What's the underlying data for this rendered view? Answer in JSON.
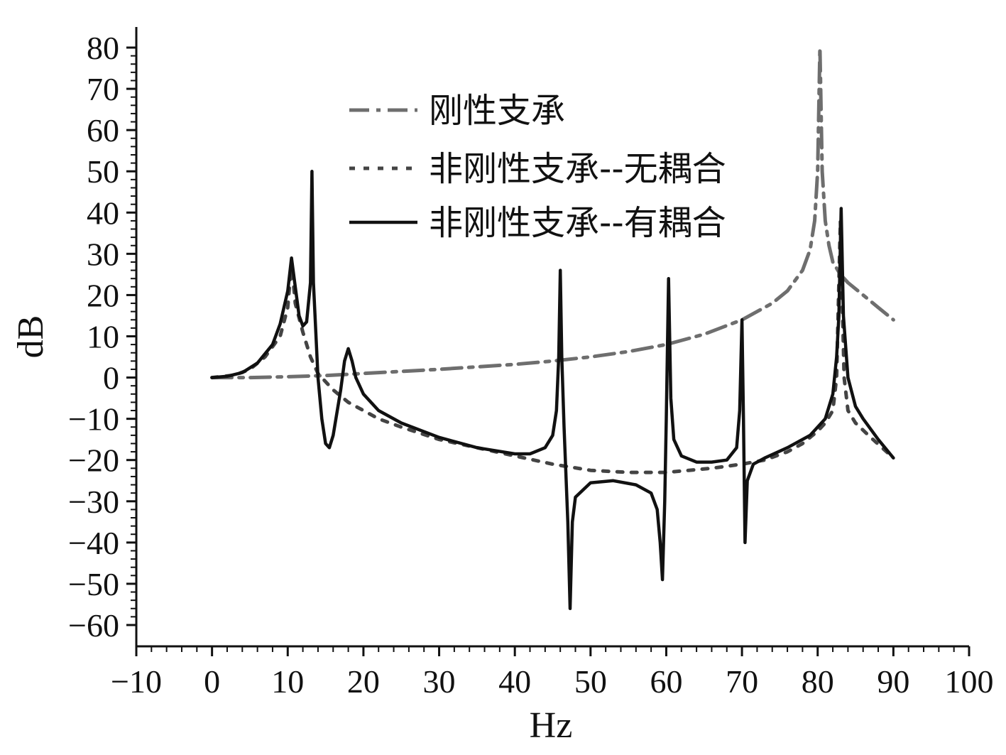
{
  "chart_data": {
    "type": "line",
    "title": "",
    "xlabel": "Hz",
    "ylabel": "dB",
    "xlim": [
      -10,
      100
    ],
    "ylim": [
      -65,
      85
    ],
    "x_ticks": [
      -10,
      0,
      10,
      20,
      30,
      40,
      50,
      60,
      70,
      80,
      90,
      100
    ],
    "y_ticks": [
      -60,
      -50,
      -40,
      -30,
      -20,
      -10,
      0,
      10,
      20,
      30,
      40,
      50,
      60,
      70,
      80
    ],
    "x_tick_labels": [
      "−10",
      "0",
      "10",
      "20",
      "30",
      "40",
      "50",
      "60",
      "70",
      "80",
      "90",
      "100"
    ],
    "y_tick_labels": [
      "−60",
      "−50",
      "−40",
      "−30",
      "−20",
      "−10",
      "0",
      "10",
      "20",
      "30",
      "40",
      "50",
      "60",
      "70",
      "80"
    ],
    "grid": false,
    "legend_position": "top-center",
    "series": [
      {
        "name": "刚性支承",
        "style": "dash-dot",
        "color": "#6e6e6e",
        "points": [
          [
            0,
            0
          ],
          [
            5,
            0
          ],
          [
            10,
            0.2
          ],
          [
            15,
            0.5
          ],
          [
            20,
            1
          ],
          [
            25,
            1.5
          ],
          [
            30,
            2
          ],
          [
            35,
            2.6
          ],
          [
            40,
            3.2
          ],
          [
            45,
            4
          ],
          [
            50,
            5
          ],
          [
            55,
            6.3
          ],
          [
            60,
            8
          ],
          [
            65,
            10.5
          ],
          [
            70,
            14
          ],
          [
            74,
            18
          ],
          [
            76,
            21
          ],
          [
            78,
            26
          ],
          [
            79,
            31
          ],
          [
            79.6,
            38
          ],
          [
            80,
            50
          ],
          [
            80.3,
            80
          ],
          [
            80.6,
            50
          ],
          [
            81,
            38
          ],
          [
            81.5,
            32
          ],
          [
            82,
            28
          ],
          [
            83,
            25
          ],
          [
            84,
            23
          ],
          [
            86,
            20
          ],
          [
            88,
            17
          ],
          [
            90,
            14
          ]
        ]
      },
      {
        "name": "非刚性支承--无耦合",
        "style": "dotted",
        "color": "#444444",
        "points": [
          [
            0,
            0
          ],
          [
            3,
            0.6
          ],
          [
            5,
            2
          ],
          [
            7,
            5
          ],
          [
            9,
            10
          ],
          [
            10,
            17
          ],
          [
            10.5,
            28
          ],
          [
            11,
            18
          ],
          [
            12,
            11
          ],
          [
            13,
            5
          ],
          [
            14,
            1
          ],
          [
            15,
            -1
          ],
          [
            16,
            -3
          ],
          [
            18,
            -6
          ],
          [
            20,
            -8
          ],
          [
            22,
            -10
          ],
          [
            25,
            -12
          ],
          [
            30,
            -15
          ],
          [
            35,
            -17
          ],
          [
            40,
            -19
          ],
          [
            45,
            -21
          ],
          [
            50,
            -22.5
          ],
          [
            55,
            -23
          ],
          [
            60,
            -23
          ],
          [
            63,
            -22.5
          ],
          [
            66,
            -22
          ],
          [
            70,
            -21
          ],
          [
            73,
            -20
          ],
          [
            76,
            -18
          ],
          [
            78,
            -16
          ],
          [
            80,
            -13
          ],
          [
            81,
            -11
          ],
          [
            82,
            -8
          ],
          [
            82.5,
            0
          ],
          [
            83,
            38
          ],
          [
            83.5,
            0
          ],
          [
            84,
            -8
          ],
          [
            85,
            -11
          ],
          [
            87,
            -14.5
          ],
          [
            90,
            -19.5
          ]
        ]
      },
      {
        "name": "非刚性支承--有耦合",
        "style": "solid",
        "color": "#111111",
        "points": [
          [
            0,
            0
          ],
          [
            2,
            0.3
          ],
          [
            4,
            1.2
          ],
          [
            6,
            3.5
          ],
          [
            8,
            8
          ],
          [
            9,
            13
          ],
          [
            10,
            21
          ],
          [
            10.5,
            29
          ],
          [
            11,
            22
          ],
          [
            11.5,
            15
          ],
          [
            12,
            12.5
          ],
          [
            12.5,
            13.5
          ],
          [
            13,
            23
          ],
          [
            13.2,
            50
          ],
          [
            13.4,
            23
          ],
          [
            14,
            0
          ],
          [
            14.5,
            -10
          ],
          [
            15,
            -16
          ],
          [
            15.5,
            -17
          ],
          [
            16,
            -14
          ],
          [
            17,
            -3
          ],
          [
            17.5,
            4
          ],
          [
            18,
            7
          ],
          [
            18.5,
            4
          ],
          [
            19,
            0
          ],
          [
            20,
            -4
          ],
          [
            22,
            -8
          ],
          [
            25,
            -11
          ],
          [
            30,
            -14.5
          ],
          [
            35,
            -17
          ],
          [
            40,
            -18.5
          ],
          [
            42,
            -18.5
          ],
          [
            44,
            -17
          ],
          [
            45,
            -14
          ],
          [
            45.5,
            -8
          ],
          [
            45.8,
            5
          ],
          [
            46,
            26
          ],
          [
            46.2,
            5
          ],
          [
            46.5,
            -12
          ],
          [
            47,
            -35
          ],
          [
            47.3,
            -56
          ],
          [
            47.6,
            -35
          ],
          [
            48,
            -29
          ],
          [
            50,
            -25.5
          ],
          [
            53,
            -25
          ],
          [
            56,
            -26
          ],
          [
            58,
            -28
          ],
          [
            58.8,
            -32
          ],
          [
            59.2,
            -40
          ],
          [
            59.5,
            -49
          ],
          [
            59.8,
            -30
          ],
          [
            60,
            -10
          ],
          [
            60.3,
            24
          ],
          [
            60.6,
            -5
          ],
          [
            61,
            -15
          ],
          [
            62,
            -19
          ],
          [
            64,
            -20.5
          ],
          [
            66,
            -20.5
          ],
          [
            68,
            -20
          ],
          [
            69.3,
            -17
          ],
          [
            69.7,
            -8
          ],
          [
            70,
            14
          ],
          [
            70.2,
            -10
          ],
          [
            70.4,
            -40
          ],
          [
            70.7,
            -25
          ],
          [
            71.5,
            -21
          ],
          [
            73,
            -19.5
          ],
          [
            76,
            -17
          ],
          [
            79,
            -14
          ],
          [
            81,
            -10
          ],
          [
            82,
            -4
          ],
          [
            82.5,
            5
          ],
          [
            82.8,
            15
          ],
          [
            83.1,
            41
          ],
          [
            83.4,
            15
          ],
          [
            84,
            0
          ],
          [
            85,
            -7
          ],
          [
            86,
            -10
          ],
          [
            88,
            -15
          ],
          [
            90,
            -19.5
          ]
        ]
      }
    ]
  }
}
